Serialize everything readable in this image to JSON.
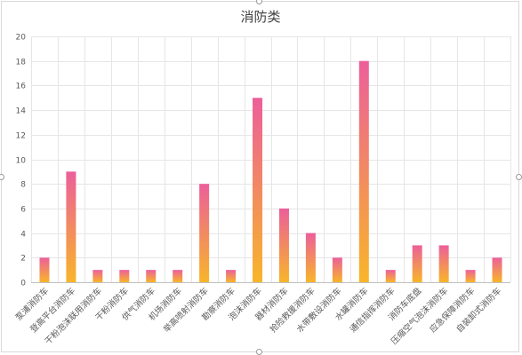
{
  "chart_data": {
    "type": "bar",
    "title": "消防类",
    "categories": [
      "泵浦消防车",
      "登高平台消防车",
      "干粉泡沫联用消防车",
      "干粉消防车",
      "供气消防车",
      "机场消防车",
      "举高喷射消防车",
      "勘察消防车",
      "泡沫消防车",
      "器材消防车",
      "抢险救援消防车",
      "水带敷设消防车",
      "水罐消防车",
      "通信指挥消防车",
      "消防车底盘",
      "压缩空气泡沫消防车",
      "应急保障消防车",
      "自装卸式消防车"
    ],
    "values": [
      2,
      9,
      1,
      1,
      1,
      1,
      8,
      1,
      15,
      6,
      4,
      2,
      18,
      1,
      3,
      3,
      1,
      2
    ],
    "ylim": [
      0,
      20
    ],
    "yticks": [
      0,
      2,
      4,
      6,
      8,
      10,
      12,
      14,
      16,
      18,
      20
    ],
    "grid": true,
    "colors": {
      "bar_top": "#ec5f9a",
      "bar_bottom": "#f8b52a"
    }
  }
}
